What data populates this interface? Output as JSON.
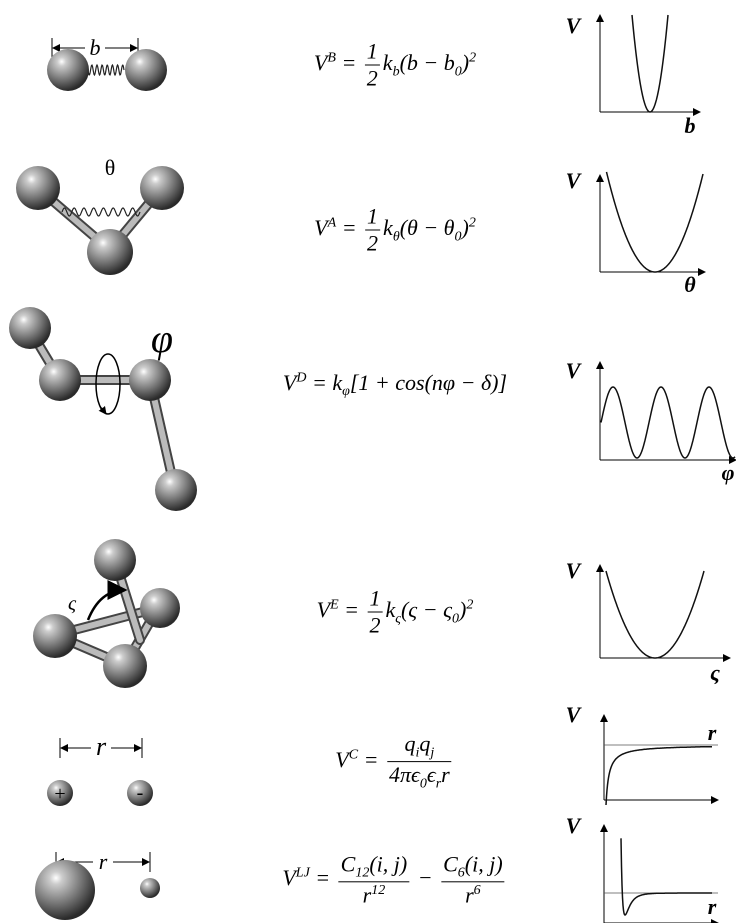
{
  "rows": [
    {
      "label": "b",
      "equation": [
        "V",
        {
          "sup": "B"
        },
        " = ",
        {
          "frac": [
            [
              "1"
            ],
            [
              "2"
            ]
          ]
        },
        "k",
        {
          "sub": "b"
        },
        "(b − b",
        {
          "sub": "0"
        },
        ")",
        {
          "sup": "2"
        }
      ],
      "plot": {
        "y_label": "V",
        "x_label": "b"
      }
    },
    {
      "label": "θ",
      "equation": [
        "V",
        {
          "sup": "A"
        },
        " = ",
        {
          "frac": [
            [
              "1"
            ],
            [
              "2"
            ]
          ]
        },
        "k",
        {
          "sub": "θ"
        },
        "(θ − θ",
        {
          "sub": "0"
        },
        ")",
        {
          "sup": "2"
        }
      ],
      "plot": {
        "y_label": "V",
        "x_label": "θ"
      }
    },
    {
      "label": "φ",
      "equation": [
        "V",
        {
          "sup": "D"
        },
        " = k",
        {
          "sub": "φ"
        },
        "[1 + cos(nφ − δ)]"
      ],
      "plot": {
        "y_label": "V",
        "x_label": "φ"
      }
    },
    {
      "label": "ς",
      "equation": [
        "V",
        {
          "sup": "E"
        },
        " = ",
        {
          "frac": [
            [
              "1"
            ],
            [
              "2"
            ]
          ]
        },
        "k",
        {
          "sub": "ς"
        },
        "(ς − ς",
        {
          "sub": "0"
        },
        ")",
        {
          "sup": "2"
        }
      ],
      "plot": {
        "y_label": "V",
        "x_label": "ς"
      }
    },
    {
      "label": "r",
      "charges": [
        "+",
        "-"
      ],
      "equation": [
        "V",
        {
          "sup": "C"
        },
        " = ",
        {
          "frac": [
            [
              "q",
              {
                "sub": "i"
              },
              "q",
              {
                "sub": "j"
              }
            ],
            [
              "4πϵ",
              {
                "sub": "0"
              },
              "ϵ",
              {
                "sub": "r"
              },
              "r"
            ]
          ]
        }
      ],
      "plot": {
        "y_label": "V",
        "x_label": "r"
      }
    },
    {
      "label": "r",
      "equation": [
        "V",
        {
          "sup": "LJ"
        },
        " = ",
        {
          "frac": [
            [
              "C",
              {
                "sub": "12"
              },
              "(i, j)"
            ],
            [
              "r",
              {
                "sup": "12"
              }
            ]
          ]
        },
        " − ",
        {
          "frac": [
            [
              "C",
              {
                "sub": "6"
              },
              "(i, j)"
            ],
            [
              "r",
              {
                "sup": "6"
              }
            ]
          ]
        }
      ],
      "plot": {
        "y_label": "V",
        "x_label": "r"
      }
    }
  ]
}
